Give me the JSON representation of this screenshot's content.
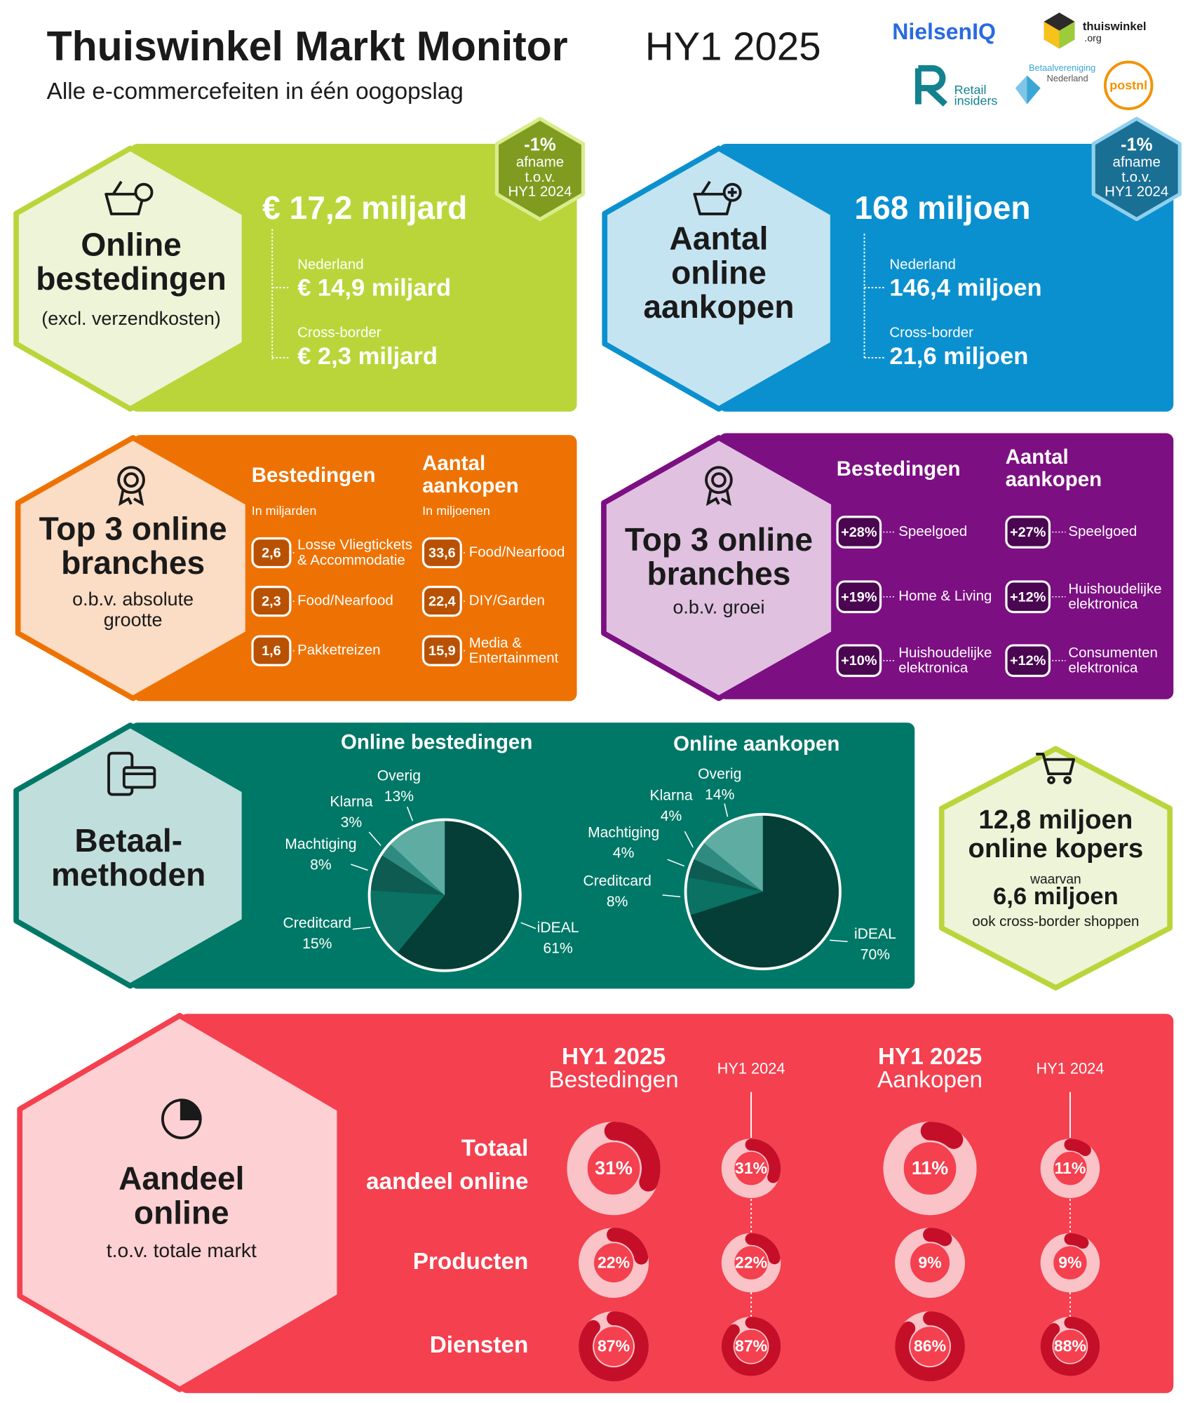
{
  "header": {
    "title": "Thuiswinkel Markt Monitor",
    "period": "HY1 2025",
    "subtitle": "Alle e-commercefeiten in één oogopslag"
  },
  "logos": {
    "nielseniq": "NielsenIQ",
    "thuiswinkel": [
      "thuiswinkel",
      ".org"
    ],
    "retail_insiders": [
      "Retail",
      "insiders"
    ],
    "betaalvereniging": [
      "Betaalvereniging",
      "Nederland"
    ],
    "postnl": "postnl"
  },
  "spending": {
    "title": [
      "Online",
      "bestedingen"
    ],
    "note": "(excl. verzendkosten)",
    "total": "€ 17,2 miljard",
    "domestic": {
      "label": "Nederland",
      "value": "€ 14,9 miljard"
    },
    "cross_border": {
      "label": "Cross-border",
      "value": "€ 2,3 miljard"
    },
    "change": [
      "-1%",
      "afname",
      "t.o.v.",
      "HY1 2024"
    ]
  },
  "purchases": {
    "title": [
      "Aantal",
      "online",
      "aankopen"
    ],
    "total": "168 miljoen",
    "domestic": {
      "label": "Nederland",
      "value": "146,4 miljoen"
    },
    "cross_border": {
      "label": "Cross-border",
      "value": "21,6 miljoen"
    },
    "change": [
      "-1%",
      "afname",
      "t.o.v.",
      "HY1 2024"
    ]
  },
  "top_size": {
    "title": [
      "Top 3 online",
      "branches"
    ],
    "subtitle": [
      "o.b.v. absolute",
      "grootte"
    ],
    "spending": {
      "title": [
        "Bestedingen"
      ],
      "unit": "In miljarden",
      "items": [
        {
          "value": "2,6",
          "label": [
            "Losse Vliegtickets",
            "& Accommodatie"
          ]
        },
        {
          "value": "2,3",
          "label": [
            "Food/Nearfood"
          ]
        },
        {
          "value": "1,6",
          "label": [
            "Pakketreizen"
          ]
        }
      ]
    },
    "purchases": {
      "title": [
        "Aantal",
        "aankopen"
      ],
      "unit": "In miljoenen",
      "items": [
        {
          "value": "33,6",
          "label": [
            "Food/Nearfood"
          ]
        },
        {
          "value": "22,4",
          "label": [
            "DIY/Garden"
          ]
        },
        {
          "value": "15,9",
          "label": [
            "Media &",
            "Entertainment"
          ]
        }
      ]
    }
  },
  "top_growth": {
    "title": [
      "Top 3 online",
      "branches"
    ],
    "subtitle": [
      "o.b.v. groei"
    ],
    "spending": {
      "title": [
        "Bestedingen"
      ],
      "items": [
        {
          "value": "+28%",
          "label": [
            "Speelgoed"
          ]
        },
        {
          "value": "+19%",
          "label": [
            "Home & Living"
          ]
        },
        {
          "value": "+10%",
          "label": [
            "Huishoudelijke",
            "elektronica"
          ]
        }
      ]
    },
    "purchases": {
      "title": [
        "Aantal",
        "aankopen"
      ],
      "items": [
        {
          "value": "+27%",
          "label": [
            "Speelgoed"
          ]
        },
        {
          "value": "+12%",
          "label": [
            "Huishoudelijke",
            "elektronica"
          ]
        },
        {
          "value": "+12%",
          "label": [
            "Consumenten",
            "elektronica"
          ]
        }
      ]
    }
  },
  "payment": {
    "title": [
      "Betaal-",
      "methoden"
    ]
  },
  "chart_data": [
    {
      "type": "pie",
      "title": "Online bestedingen",
      "categories": [
        "iDEAL",
        "Creditcard",
        "Machtiging",
        "Klarna",
        "Overig"
      ],
      "values": [
        61,
        15,
        8,
        3,
        13
      ],
      "value_labels": [
        "61%",
        "15%",
        "8%",
        "3%",
        "13%"
      ],
      "colors": [
        "#053e36",
        "#0a7163",
        "#0d5b51",
        "#2f8b7f",
        "#5eaca2"
      ]
    },
    {
      "type": "pie",
      "title": "Online aankopen",
      "categories": [
        "iDEAL",
        "Creditcard",
        "Machtiging",
        "Klarna",
        "Overig"
      ],
      "values": [
        70,
        8,
        4,
        4,
        14
      ],
      "value_labels": [
        "70%",
        "8%",
        "4%",
        "4%",
        "14%"
      ],
      "colors": [
        "#053e36",
        "#0a7163",
        "#0d5b51",
        "#2f8b7f",
        "#5eaca2"
      ]
    }
  ],
  "buyers": {
    "total": [
      "12,8 miljoen",
      "online kopers"
    ],
    "of_which": "waarvan",
    "cross_border": "6,6 miljoen",
    "note": "ook cross-border shoppen"
  },
  "share": {
    "title": [
      "Aandeel",
      "online"
    ],
    "subtitle": "t.o.v. totale markt",
    "columns": [
      {
        "title": [
          "HY1 2025",
          "Bestedingen"
        ]
      },
      {
        "title": [
          "HY1 2024"
        ]
      },
      {
        "title": [
          "HY1 2025",
          "Aankopen"
        ]
      },
      {
        "title": [
          "HY1 2024"
        ]
      }
    ],
    "rows": [
      {
        "label": [
          "Totaal",
          "aandeel online"
        ],
        "values": [
          31,
          31,
          11,
          11
        ],
        "value_labels": [
          "31%",
          "31%",
          "11%",
          "11%"
        ]
      },
      {
        "label": [
          "Producten"
        ],
        "values": [
          22,
          22,
          9,
          9
        ],
        "value_labels": [
          "22%",
          "22%",
          "9%",
          "9%"
        ]
      },
      {
        "label": [
          "Diensten"
        ],
        "values": [
          87,
          87,
          86,
          88
        ],
        "value_labels": [
          "87%",
          "87%",
          "86%",
          "88%"
        ]
      }
    ]
  }
}
